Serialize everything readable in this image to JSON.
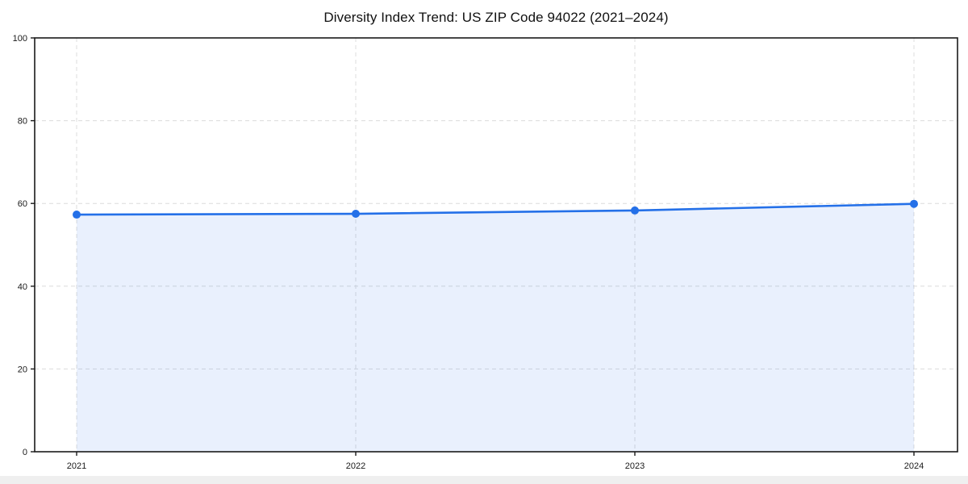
{
  "page": {
    "background": "#ffffff",
    "bottom_strip_color": "#efefef"
  },
  "chart_data": {
    "type": "line",
    "title": "Diversity Index Trend: US ZIP Code 94022 (2021–2024)",
    "x": [
      2021,
      2022,
      2023,
      2024
    ],
    "values": [
      57.3,
      57.5,
      58.3,
      59.9
    ],
    "xlabel": "",
    "ylabel": "",
    "ylim": [
      0,
      100
    ],
    "yticks": [
      0,
      20,
      40,
      60,
      80,
      100
    ],
    "xtick_labels": [
      "2021",
      "2022",
      "2023",
      "2024"
    ],
    "grid": true,
    "grid_style": "dashed",
    "grid_color": "#dcdcdc",
    "legend_position": "none",
    "area_fill": true,
    "line_color": "#2470e8",
    "marker_color": "#2470e8",
    "fill_color": "rgba(36,112,232,0.10)",
    "spine_color": "#1a1a1a",
    "marker_style": "circle"
  }
}
